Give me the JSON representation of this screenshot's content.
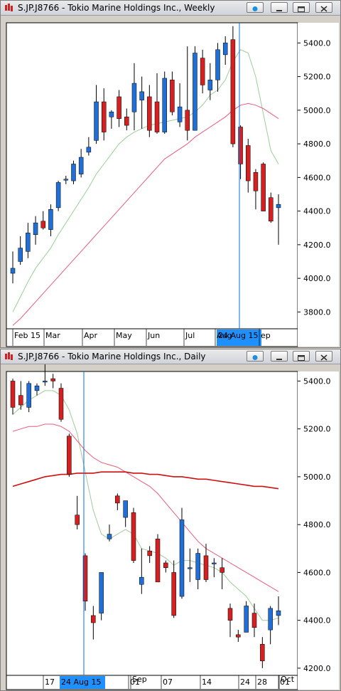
{
  "colors": {
    "up": "#1f6fd6",
    "down": "#d42020",
    "marker": "#0a6ee8",
    "ma_fast": "#80b080",
    "ma_slow": "#e04060",
    "ma_long": "#cc1010"
  },
  "windows": [
    {
      "title": "S.JP.J8766 - Tokio Marine Holdings Inc., Weekly",
      "price_axis": {
        "min": 3700,
        "max": 5520,
        "ticks": [
          "5400.0",
          "5200.0",
          "5000.0",
          "4800.0",
          "4600.0",
          "4400.0",
          "4200.0",
          "4000.0",
          "3800.0"
        ],
        "tick_values": [
          5400,
          5200,
          5000,
          4800,
          4600,
          4400,
          4200,
          4000,
          3800
        ]
      },
      "date_axis": [
        "Feb 15",
        "Mar",
        "Apr",
        "May",
        "Jun",
        "Jul",
        "Aug",
        "ep"
      ],
      "highlight_label": "24 Aug 15",
      "chart_data": {
        "type": "candlestick",
        "period": "weekly",
        "candles": [
          {
            "o": 4030,
            "h": 4160,
            "l": 3970,
            "c": 4060
          },
          {
            "o": 4100,
            "h": 4250,
            "l": 4080,
            "c": 4180
          },
          {
            "o": 4160,
            "h": 4330,
            "l": 4120,
            "c": 4270
          },
          {
            "o": 4260,
            "h": 4370,
            "l": 4200,
            "c": 4330
          },
          {
            "o": 4340,
            "h": 4400,
            "l": 4290,
            "c": 4300
          },
          {
            "o": 4290,
            "h": 4440,
            "l": 4250,
            "c": 4410
          },
          {
            "o": 4420,
            "h": 4580,
            "l": 4400,
            "c": 4570
          },
          {
            "o": 4590,
            "h": 4610,
            "l": 4560,
            "c": 4590
          },
          {
            "o": 4580,
            "h": 4700,
            "l": 4560,
            "c": 4680
          },
          {
            "o": 4620,
            "h": 4770,
            "l": 4600,
            "c": 4720
          },
          {
            "o": 4750,
            "h": 4840,
            "l": 4730,
            "c": 4780
          },
          {
            "o": 4820,
            "h": 5150,
            "l": 4800,
            "c": 5050
          },
          {
            "o": 5050,
            "h": 5130,
            "l": 4820,
            "c": 4870
          },
          {
            "o": 4960,
            "h": 5000,
            "l": 4890,
            "c": 4990
          },
          {
            "o": 5080,
            "h": 5120,
            "l": 4900,
            "c": 4950
          },
          {
            "o": 4960,
            "h": 5010,
            "l": 4880,
            "c": 4910
          },
          {
            "o": 4990,
            "h": 5280,
            "l": 4880,
            "c": 5160
          },
          {
            "o": 5060,
            "h": 5200,
            "l": 4890,
            "c": 5110
          },
          {
            "o": 5080,
            "h": 5150,
            "l": 4840,
            "c": 4880
          },
          {
            "o": 5050,
            "h": 5220,
            "l": 4860,
            "c": 4870
          },
          {
            "o": 4870,
            "h": 5230,
            "l": 4860,
            "c": 5190
          },
          {
            "o": 5180,
            "h": 5230,
            "l": 4970,
            "c": 4990
          },
          {
            "o": 4930,
            "h": 5160,
            "l": 4900,
            "c": 5020
          },
          {
            "o": 5000,
            "h": 5380,
            "l": 4820,
            "c": 4880
          },
          {
            "o": 4880,
            "h": 5380,
            "l": 4880,
            "c": 5340
          },
          {
            "o": 5310,
            "h": 5360,
            "l": 5100,
            "c": 5150
          },
          {
            "o": 5120,
            "h": 5280,
            "l": 5060,
            "c": 5180
          },
          {
            "o": 5180,
            "h": 5400,
            "l": 5110,
            "c": 5360
          },
          {
            "o": 5330,
            "h": 5440,
            "l": 5270,
            "c": 5400
          },
          {
            "o": 5420,
            "h": 5500,
            "l": 4780,
            "c": 4800
          },
          {
            "o": 4900,
            "h": 4910,
            "l": 4590,
            "c": 4680
          },
          {
            "o": 4790,
            "h": 4830,
            "l": 4510,
            "c": 4580
          },
          {
            "o": 4630,
            "h": 4650,
            "l": 4410,
            "c": 4520
          },
          {
            "o": 4680,
            "h": 4690,
            "l": 4400,
            "c": 4400
          },
          {
            "o": 4480,
            "h": 4510,
            "l": 4330,
            "c": 4340
          },
          {
            "o": 4420,
            "h": 4500,
            "l": 4200,
            "c": 4440
          }
        ],
        "ma_fast": [
          3800,
          3890,
          3980,
          4060,
          4120,
          4180,
          4260,
          4330,
          4400,
          4470,
          4540,
          4620,
          4680,
          4740,
          4800,
          4840,
          4870,
          4890,
          4910,
          4920,
          4930,
          4940,
          4950,
          4960,
          4990,
          5030,
          5090,
          5120,
          5180,
          5290,
          5360,
          5340,
          5200,
          4980,
          4760,
          4680
        ],
        "ma_slow": [
          3720,
          3760,
          3810,
          3860,
          3910,
          3960,
          4010,
          4060,
          4110,
          4160,
          4210,
          4260,
          4310,
          4360,
          4410,
          4460,
          4510,
          4560,
          4610,
          4660,
          4710,
          4740,
          4770,
          4800,
          4840,
          4870,
          4900,
          4930,
          4960,
          5000,
          5030,
          5040,
          5030,
          5010,
          4980,
          4950
        ]
      }
    },
    {
      "title": "S.JP.J8766 - Tokio Marine Holdings Inc., Daily",
      "price_axis": {
        "min": 4170,
        "max": 5440,
        "ticks": [
          "5400.0",
          "5200.0",
          "5000.0",
          "4800.0",
          "4600.0",
          "4400.0",
          "4200.0"
        ],
        "tick_values": [
          5400,
          5200,
          5000,
          4800,
          4600,
          4400,
          4200
        ]
      },
      "date_axis": [
        "17",
        "Sep",
        "01",
        "07",
        "14",
        "24",
        "28",
        "Oct",
        "01"
      ],
      "highlight_label": "24 Aug 15",
      "chart_data": {
        "type": "candlestick",
        "period": "daily",
        "candles": [
          {
            "o": 5400,
            "h": 5410,
            "l": 5260,
            "c": 5290
          },
          {
            "o": 5340,
            "h": 5400,
            "l": 5280,
            "c": 5300
          },
          {
            "o": 5290,
            "h": 5400,
            "l": 5270,
            "c": 5390
          },
          {
            "o": 5360,
            "h": 5390,
            "l": 5340,
            "c": 5380
          },
          {
            "o": 5400,
            "h": 5480,
            "l": 5380,
            "c": 5400
          },
          {
            "o": 5410,
            "h": 5430,
            "l": 5370,
            "c": 5400
          },
          {
            "o": 5370,
            "h": 5390,
            "l": 5230,
            "c": 5240
          },
          {
            "o": 5170,
            "h": 5180,
            "l": 5000,
            "c": 5010
          },
          {
            "o": 4840,
            "h": 4920,
            "l": 4780,
            "c": 4800
          },
          {
            "o": 4670,
            "h": 4680,
            "l": 4440,
            "c": 4480
          },
          {
            "o": 4420,
            "h": 4460,
            "l": 4320,
            "c": 4390
          },
          {
            "o": 4430,
            "h": 4600,
            "l": 4400,
            "c": 4600
          },
          {
            "o": 4740,
            "h": 4800,
            "l": 4730,
            "c": 4760
          },
          {
            "o": 4920,
            "h": 4930,
            "l": 4860,
            "c": 4890
          },
          {
            "o": 4830,
            "h": 4900,
            "l": 4790,
            "c": 4900
          },
          {
            "o": 4850,
            "h": 4870,
            "l": 4640,
            "c": 4650
          },
          {
            "o": 4550,
            "h": 4700,
            "l": 4510,
            "c": 4580
          },
          {
            "o": 4690,
            "h": 4710,
            "l": 4640,
            "c": 4670
          },
          {
            "o": 4740,
            "h": 4760,
            "l": 4560,
            "c": 4560
          },
          {
            "o": 4640,
            "h": 4650,
            "l": 4600,
            "c": 4620
          },
          {
            "o": 4600,
            "h": 4650,
            "l": 4410,
            "c": 4420
          },
          {
            "o": 4500,
            "h": 4870,
            "l": 4490,
            "c": 4820
          },
          {
            "o": 4620,
            "h": 4700,
            "l": 4560,
            "c": 4620
          },
          {
            "o": 4570,
            "h": 4700,
            "l": 4530,
            "c": 4680
          },
          {
            "o": 4670,
            "h": 4720,
            "l": 4560,
            "c": 4570
          },
          {
            "o": 4640,
            "h": 4660,
            "l": 4580,
            "c": 4640
          },
          {
            "o": 4620,
            "h": 4660,
            "l": 4530,
            "c": 4600
          },
          {
            "o": 4450,
            "h": 4470,
            "l": 4330,
            "c": 4400
          },
          {
            "o": 4340,
            "h": 4360,
            "l": 4310,
            "c": 4330
          },
          {
            "o": 4350,
            "h": 4480,
            "l": 4350,
            "c": 4460
          },
          {
            "o": 4430,
            "h": 4470,
            "l": 4330,
            "c": 4370
          },
          {
            "o": 4300,
            "h": 4330,
            "l": 4200,
            "c": 4230
          },
          {
            "o": 4360,
            "h": 4460,
            "l": 4300,
            "c": 4450
          },
          {
            "o": 4420,
            "h": 4500,
            "l": 4380,
            "c": 4440
          }
        ],
        "ma_fast": [
          5260,
          5290,
          5320,
          5340,
          5360,
          5360,
          5340,
          5280,
          5180,
          5020,
          4860,
          4760,
          4740,
          4760,
          4780,
          4760,
          4700,
          4690,
          4680,
          4660,
          4630,
          4650,
          4650,
          4640,
          4630,
          4620,
          4600,
          4560,
          4530,
          4500,
          4450,
          4400,
          4400,
          4410
        ],
        "ma_slow": [
          5190,
          5200,
          5210,
          5210,
          5220,
          5220,
          5210,
          5190,
          5150,
          5110,
          5080,
          5060,
          5050,
          5040,
          5020,
          5000,
          4980,
          4960,
          4930,
          4890,
          4850,
          4810,
          4770,
          4730,
          4700,
          4680,
          4660,
          4640,
          4620,
          4600,
          4580,
          4560,
          4540,
          4520
        ],
        "ma_long": [
          4960,
          4970,
          4980,
          4990,
          5000,
          5005,
          5010,
          5010,
          5015,
          5015,
          5015,
          5020,
          5020,
          5020,
          5020,
          5015,
          5015,
          5010,
          5010,
          5005,
          5000,
          5000,
          4995,
          4990,
          4990,
          4985,
          4980,
          4975,
          4970,
          4965,
          4960,
          4960,
          4955,
          4950
        ]
      }
    }
  ]
}
